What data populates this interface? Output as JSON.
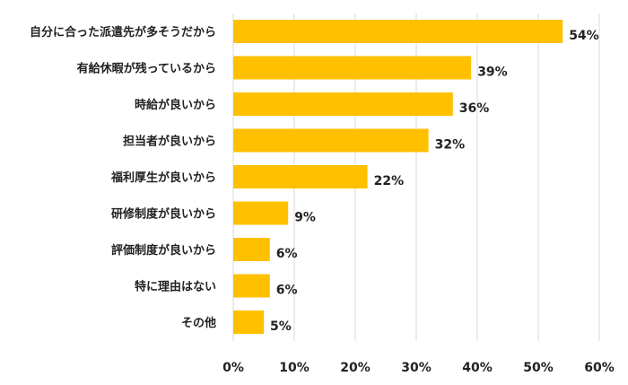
{
  "chart_data": {
    "type": "bar",
    "orientation": "horizontal",
    "title": "",
    "xlabel": "",
    "ylabel": "",
    "categories": [
      "自分に合った派遣先が多そうだから",
      "有給休暇が残っているから",
      "時給が良いから",
      "担当者が良いから",
      "福利厚生が良いから",
      "研修制度が良いから",
      "評価制度が良いから",
      "特に理由はない",
      "その他"
    ],
    "values": [
      54,
      39,
      36,
      32,
      22,
      9,
      6,
      6,
      5
    ],
    "data_labels": [
      "54%",
      "39%",
      "36%",
      "32%",
      "22%",
      "9%",
      "6%",
      "6%",
      "5%"
    ],
    "xlim": [
      0,
      60
    ],
    "xticks": [
      0,
      10,
      20,
      30,
      40,
      50,
      60
    ],
    "xtick_labels": [
      "0%",
      "10%",
      "20%",
      "30%",
      "40%",
      "50%",
      "60%"
    ],
    "grid": "vertical",
    "legend": "none",
    "colors": {
      "bar": "#FFC000",
      "grid": "#D9D9D9"
    }
  }
}
